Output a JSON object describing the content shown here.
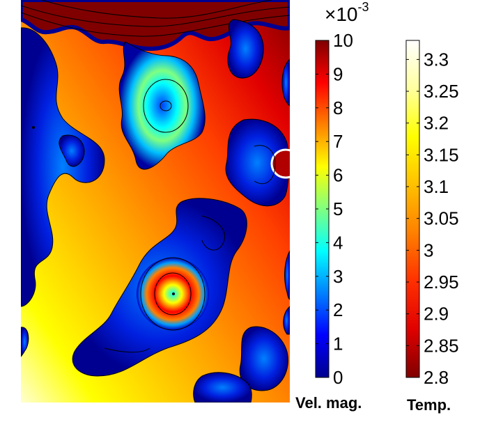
{
  "chart_data": {
    "type": "heatmap",
    "title": "",
    "colorbars": [
      {
        "name": "velocity-colorbar",
        "title": "Vel. mag.",
        "multiplier": "×10",
        "multiplier_exp": "-3",
        "range": [
          0,
          10
        ],
        "ticks": [
          "0",
          "1",
          "2",
          "3",
          "4",
          "5",
          "6",
          "7",
          "8",
          "9",
          "10"
        ],
        "colormap": "jet",
        "colors": [
          "#00008f",
          "#0000ff",
          "#0080ff",
          "#00ffff",
          "#80ff80",
          "#ffff00",
          "#ff8000",
          "#ff0000",
          "#800000"
        ]
      },
      {
        "name": "temperature-colorbar",
        "title": "Temp.",
        "range": [
          2.8,
          3.33
        ],
        "ticks": [
          "2.8",
          "2.85",
          "2.9",
          "2.95",
          "3",
          "3.05",
          "3.1",
          "3.15",
          "3.2",
          "3.25",
          "3.3"
        ],
        "colormap": "heat",
        "colors": [
          "#800000",
          "#e00000",
          "#ff3000",
          "#ff8000",
          "#ffc000",
          "#ffff00",
          "#ffffa0",
          "#ffffff"
        ]
      }
    ]
  }
}
